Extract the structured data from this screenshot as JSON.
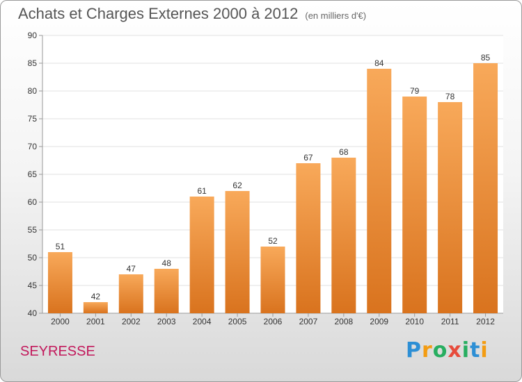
{
  "title": "Achats et Charges Externes 2000 à 2012",
  "subtitle": "(en milliers d'€)",
  "place": "SEYRESSE",
  "brand": {
    "letters": [
      "P",
      "r",
      "o",
      "x",
      "i",
      "t",
      "i"
    ],
    "colors": [
      "#2d8fd5",
      "#f39c12",
      "#27ae60",
      "#e74c3c",
      "#27ae60",
      "#2d8fd5",
      "#f39c12"
    ]
  },
  "colors": {
    "bar_top": "#f8a95a",
    "bar_bottom": "#d9731e",
    "grid": "#e2e2e2",
    "axis": "#999999"
  },
  "chart_data": {
    "type": "bar",
    "title": "Achats et Charges Externes 2000 à 2012",
    "categories": [
      "2000",
      "2001",
      "2002",
      "2003",
      "2004",
      "2005",
      "2006",
      "2007",
      "2008",
      "2009",
      "2010",
      "2011",
      "2012"
    ],
    "values": [
      51,
      42,
      47,
      48,
      61,
      62,
      52,
      67,
      68,
      84,
      79,
      78,
      85
    ],
    "yticks": [
      40,
      45,
      50,
      55,
      60,
      65,
      70,
      75,
      80,
      85,
      90
    ],
    "ylim": [
      40,
      90
    ],
    "xlabel": "",
    "ylabel": "",
    "grid": true
  }
}
